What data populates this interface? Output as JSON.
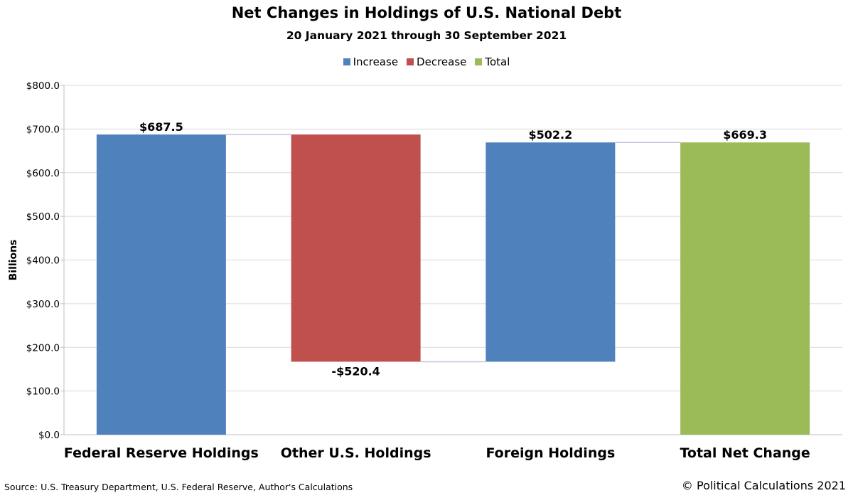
{
  "chart_data": {
    "type": "bar",
    "subtype": "waterfall",
    "title": "Net Changes in Holdings of U.S. National Debt",
    "subtitle": "20 January 2021 through 30 September 2021",
    "xlabel": "",
    "ylabel": "Billions",
    "ylim": [
      0,
      800
    ],
    "yticks": [
      "$0.0",
      "$100.0",
      "$200.0",
      "$300.0",
      "$400.0",
      "$500.0",
      "$600.0",
      "$700.0",
      "$800.0"
    ],
    "grid": true,
    "legend_position": "top",
    "legend": [
      {
        "name": "Increase",
        "color": "#4f81bd"
      },
      {
        "name": "Decrease",
        "color": "#c0504d"
      },
      {
        "name": "Total",
        "color": "#9bbb59"
      }
    ],
    "categories": [
      "Federal Reserve Holdings",
      "Other U.S. Holdings",
      "Foreign Holdings",
      "Total Net Change"
    ],
    "values": [
      687.5,
      -520.4,
      502.2,
      669.3
    ],
    "kinds": [
      "Increase",
      "Decrease",
      "Increase",
      "Total"
    ],
    "data_labels": [
      "$687.5",
      "-$520.4",
      "$502.2",
      "$669.3"
    ],
    "connector_color": "#c6bfdc"
  },
  "footer": {
    "source": "Source: U.S. Treasury Department, U.S. Federal Reserve, Author's Calculations",
    "copyright": "© Political Calculations 2021"
  }
}
